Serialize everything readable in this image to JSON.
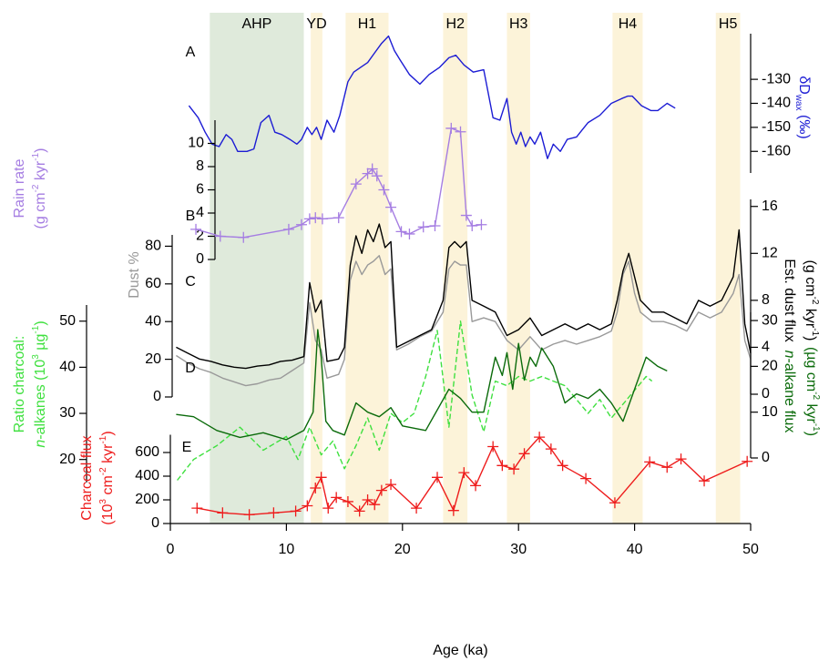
{
  "chart_data": [
    {
      "type": "line",
      "panel_label": "A",
      "y2label": [
        [
          {
            "text": "δD"
          },
          {
            "text": "wax",
            "sub": true
          },
          {
            "text": " (‰)"
          }
        ]
      ],
      "y2lim": [
        -169,
        -111
      ],
      "y2ticks": [
        -160,
        -150,
        -140,
        -130
      ],
      "series": [
        {
          "color": "#1c1cd4",
          "axis": "y2",
          "x": [
            1.6,
            2.4,
            3.0,
            3.6,
            4.2,
            4.8,
            5.3,
            5.8,
            6.6,
            7.2,
            7.8,
            8.5,
            9.0,
            9.6,
            10.3,
            10.9,
            11.3,
            11.8,
            12.2,
            12.6,
            13.0,
            13.5,
            14.1,
            14.6,
            15.3,
            15.8,
            16.4,
            17.0,
            17.6,
            18.2,
            18.8,
            19.3,
            19.8,
            20.6,
            21.5,
            22.3,
            23.2,
            24.0,
            24.6,
            25.3,
            26.1,
            27.0,
            27.8,
            28.4,
            29.0,
            29.4,
            29.8,
            30.2,
            30.6,
            31.0,
            31.4,
            31.9,
            32.5,
            33.0,
            33.6,
            34.2,
            35.0,
            36.0,
            37.0,
            38.0,
            38.9,
            39.4,
            39.8,
            40.6,
            41.4,
            42.0,
            42.8,
            43.5
          ],
          "values": [
            -141,
            -146,
            -152,
            -157,
            -158,
            -153,
            -155,
            -160,
            -160,
            -159,
            -148,
            -145,
            -152,
            -153,
            -155,
            -157,
            -155,
            -150,
            -153,
            -150,
            -155,
            -147,
            -152,
            -145,
            -131,
            -127,
            -125,
            -123,
            -119,
            -115,
            -112,
            -118,
            -122,
            -128,
            -132,
            -128,
            -125,
            -121,
            -120,
            -124,
            -127,
            -126,
            -146,
            -147,
            -138,
            -152,
            -157,
            -152,
            -158,
            -154,
            -157,
            -152,
            -163,
            -157,
            -160,
            -155,
            -154,
            -148,
            -145,
            -140,
            -138,
            -137,
            -137,
            -141,
            -143,
            -143,
            -140,
            -142
          ]
        }
      ]
    },
    {
      "type": "line",
      "panel_label": "B",
      "ylabel": [
        [
          {
            "text": "Rain rate"
          }
        ],
        [
          {
            "text": "(g cm"
          },
          {
            "text": "-2",
            "sup": true
          },
          {
            "text": " kyr"
          },
          {
            "text": "-1",
            "sup": true
          },
          {
            "text": ")"
          }
        ]
      ],
      "ylim": [
        0,
        12
      ],
      "yticks": [
        0,
        2,
        4,
        6,
        8,
        10
      ],
      "series": [
        {
          "color": "#a57de2",
          "marker": "+",
          "x": [
            2.2,
            4.3,
            6.3,
            10.2,
            11.3,
            12.0,
            12.5,
            13.1,
            14.5,
            16.0,
            17.0,
            17.4,
            17.8,
            18.4,
            19.0,
            19.9,
            20.6,
            21.8,
            22.8,
            24.2,
            25.0,
            25.5,
            26.0,
            26.8
          ],
          "values": [
            2.6,
            2.0,
            1.9,
            2.6,
            3.0,
            3.5,
            3.6,
            3.5,
            3.6,
            6.5,
            7.4,
            7.8,
            7.2,
            6.0,
            4.5,
            2.4,
            2.2,
            2.8,
            2.9,
            11.3,
            11.0,
            3.8,
            2.9,
            3.0
          ]
        }
      ]
    },
    {
      "type": "line",
      "panel_label": "C",
      "ylabel": [
        [
          {
            "text": "Dust %"
          }
        ]
      ],
      "ylim": [
        0,
        86
      ],
      "yticks": [
        0,
        20,
        40,
        60,
        80
      ],
      "y2label": [
        [
          {
            "text": "Est. dust flux"
          }
        ],
        [
          {
            "text": "(g cm"
          },
          {
            "text": "-2",
            "sup": true
          },
          {
            "text": " kyr"
          },
          {
            "text": "-1",
            "sup": true
          },
          {
            "text": ")"
          }
        ]
      ],
      "y2lim": [
        0,
        16.6
      ],
      "y2ticks": [
        0,
        4,
        8,
        12,
        16
      ],
      "series": [
        {
          "color": "#999999",
          "x": [
            0.5,
            1.5,
            2.5,
            3.5,
            4.5,
            5.5,
            6.5,
            7.5,
            8.5,
            9.5,
            10.5,
            11.5,
            12.0,
            12.5,
            13.0,
            13.5,
            14.5,
            15.0,
            15.5,
            16.0,
            16.5,
            17.0,
            17.5,
            18.0,
            18.5,
            19.0,
            19.5,
            20.5,
            21.5,
            22.5,
            23.5,
            24.0,
            24.5,
            25.0,
            25.5,
            26.0,
            27.0,
            28.0,
            29.0,
            30.0,
            31.0,
            32.0,
            33.0,
            34.0,
            35.0,
            36.0,
            37.0,
            38.0,
            38.5,
            39.0,
            39.5,
            40.0,
            40.5,
            41.5,
            42.5,
            43.5,
            44.5,
            45.5,
            46.5,
            47.5,
            48.5,
            49.0,
            49.5,
            50.0
          ],
          "values": [
            22,
            18,
            15,
            13,
            10,
            8,
            6,
            7,
            9,
            10,
            14,
            18,
            50,
            30,
            25,
            10,
            12,
            20,
            62,
            72,
            65,
            70,
            72,
            75,
            65,
            68,
            25,
            28,
            32,
            35,
            45,
            68,
            72,
            70,
            70,
            40,
            42,
            40,
            30,
            25,
            32,
            25,
            28,
            30,
            28,
            30,
            32,
            35,
            45,
            65,
            72,
            55,
            45,
            40,
            40,
            38,
            35,
            45,
            42,
            45,
            55,
            65,
            30,
            20
          ]
        },
        {
          "color": "#000000",
          "axis": "y2",
          "x": [
            0.5,
            1.5,
            2.5,
            3.5,
            4.5,
            5.5,
            6.5,
            7.5,
            8.5,
            9.5,
            10.5,
            11.5,
            12.0,
            12.5,
            13.0,
            13.5,
            14.5,
            15.0,
            15.5,
            16.0,
            16.5,
            17.0,
            17.5,
            18.0,
            18.5,
            19.0,
            19.5,
            20.5,
            21.5,
            22.5,
            23.5,
            24.0,
            24.5,
            25.0,
            25.5,
            26.0,
            27.0,
            28.0,
            29.0,
            30.0,
            31.0,
            32.0,
            33.0,
            34.0,
            35.0,
            36.0,
            37.0,
            38.0,
            38.5,
            39.0,
            39.5,
            40.0,
            40.5,
            41.5,
            42.5,
            43.5,
            44.5,
            45.5,
            46.5,
            47.5,
            48.5,
            49.0,
            49.5,
            50.0
          ],
          "values": [
            4.0,
            3.5,
            3.0,
            2.8,
            2.5,
            2.3,
            2.2,
            2.4,
            2.5,
            2.8,
            2.9,
            3.2,
            9.5,
            7.0,
            8.0,
            2.8,
            3.0,
            4.0,
            11.0,
            13.5,
            12.0,
            14.0,
            13.0,
            14.5,
            12.5,
            13.0,
            4.0,
            4.5,
            5.0,
            5.5,
            8.0,
            12.5,
            13.0,
            12.5,
            13.0,
            8.0,
            7.5,
            7.0,
            5.0,
            5.5,
            6.5,
            5.0,
            5.5,
            6.0,
            5.5,
            6.0,
            5.5,
            6.0,
            8.0,
            10.5,
            12.0,
            10.0,
            8.0,
            7.0,
            7.0,
            6.5,
            6.0,
            8.0,
            7.5,
            8.0,
            10.0,
            14.0,
            6.0,
            3.5
          ]
        }
      ]
    },
    {
      "type": "line",
      "panel_label": "D",
      "ylabel": [
        [
          {
            "text": "Ratio charcoal:"
          }
        ],
        [
          {
            "text": "n",
            "italic": true
          },
          {
            "text": "-alkanes (10"
          },
          {
            "text": "3",
            "sup": true
          },
          {
            "text": " µg"
          },
          {
            "text": "-1",
            "sup": true
          },
          {
            "text": ")"
          }
        ]
      ],
      "ylim": [
        15,
        53.5
      ],
      "yticks": [
        20,
        30,
        40,
        50
      ],
      "y2label": [
        [
          {
            "text": "n",
            "italic": true
          },
          {
            "text": "-alkane flux"
          }
        ],
        [
          {
            "text": "(µg cm"
          },
          {
            "text": "-2",
            "sup": true
          },
          {
            "text": " kyr"
          },
          {
            "text": "-1",
            "sup": true
          },
          {
            "text": ")"
          }
        ]
      ],
      "y2lim": [
        0,
        31.8
      ],
      "y2ticks": [
        0,
        10,
        20,
        30
      ],
      "series": [
        {
          "color": "#3fe03f",
          "dash": true,
          "x": [
            0.6,
            2,
            4,
            6,
            8,
            10,
            11,
            12,
            13,
            14,
            15,
            16,
            17,
            18,
            19,
            20,
            21,
            22,
            23,
            24,
            25,
            26,
            27,
            28,
            29,
            30,
            31,
            32,
            33,
            34,
            35,
            36,
            37,
            38,
            39,
            40,
            41,
            41.5
          ],
          "values": [
            15.5,
            20,
            23,
            27,
            22,
            25,
            20,
            27,
            21,
            24,
            18,
            23,
            29,
            22,
            30,
            28,
            30,
            38,
            48,
            27,
            50,
            34,
            26,
            37,
            36,
            38,
            37,
            38,
            37,
            36,
            33,
            30,
            33,
            29,
            32,
            35,
            38,
            37
          ]
        },
        {
          "color": "#0b6b0b",
          "axis": "y2",
          "x": [
            0.5,
            2,
            4,
            6,
            8,
            10,
            11.5,
            12.3,
            12.7,
            13.0,
            13.4,
            14,
            15,
            16,
            17,
            18,
            19,
            20,
            22,
            24,
            25,
            26,
            27,
            28,
            28.6,
            29,
            29.5,
            30,
            30.5,
            31,
            31.5,
            32,
            33,
            34,
            35,
            36,
            37,
            38,
            39,
            40,
            41,
            42,
            42.8
          ],
          "values": [
            9.5,
            9,
            6,
            4.5,
            5.5,
            4,
            6,
            10,
            28,
            22,
            8,
            6,
            5,
            12,
            10,
            9,
            11,
            7,
            6,
            15,
            13,
            10,
            10,
            22,
            18,
            23,
            15,
            25,
            17,
            22,
            20,
            24,
            20,
            12,
            14,
            13,
            15,
            12,
            8,
            15,
            22,
            20,
            19
          ]
        }
      ]
    },
    {
      "type": "line",
      "panel_label": "E",
      "ylabel": [
        [
          {
            "text": "Charcoal flux"
          }
        ],
        [
          {
            "text": "(10"
          },
          {
            "text": "3",
            "sup": true
          },
          {
            "text": " cm"
          },
          {
            "text": "-2",
            "sup": true
          },
          {
            "text": " kyr"
          },
          {
            "text": "-1",
            "sup": true
          },
          {
            "text": ")"
          }
        ]
      ],
      "ylim": [
        0,
        750
      ],
      "yticks": [
        0,
        200,
        400,
        600
      ],
      "xlabel": "Age (ka)",
      "xlim": [
        0,
        50
      ],
      "xticks": [
        0,
        10,
        20,
        30,
        40,
        50
      ],
      "bands": [
        {
          "label": "AHP",
          "range": [
            3.4,
            11.5
          ],
          "color": "#dfeadb"
        },
        {
          "label": "YD",
          "range": [
            12.1,
            13.1
          ],
          "color": "#fcf3d9"
        },
        {
          "label": "H1",
          "range": [
            15.1,
            18.8
          ],
          "color": "#fcf3d9"
        },
        {
          "label": "H2",
          "range": [
            23.5,
            25.6
          ],
          "color": "#fcf3d9"
        },
        {
          "label": "H3",
          "range": [
            29.0,
            31.0
          ],
          "color": "#fcf3d9"
        },
        {
          "label": "H4",
          "range": [
            38.1,
            40.7
          ],
          "color": "#fcf3d9"
        },
        {
          "label": "H5",
          "range": [
            47.0,
            49.1
          ],
          "color": "#fcf3d9"
        }
      ],
      "series": [
        {
          "color": "#ee1c1c",
          "marker": "+",
          "x": [
            2.3,
            4.5,
            6.8,
            8.9,
            10.8,
            11.8,
            12.5,
            13.0,
            13.6,
            14.3,
            15.3,
            16.3,
            17.0,
            17.6,
            18.2,
            19.0,
            21.2,
            23.0,
            24.4,
            25.3,
            26.3,
            27.8,
            28.6,
            29.6,
            30.5,
            31.8,
            32.8,
            33.8,
            35.8,
            38.3,
            41.3,
            42.8,
            44.0,
            46.0,
            49.7
          ],
          "values": [
            130,
            90,
            75,
            90,
            105,
            150,
            300,
            390,
            130,
            220,
            185,
            105,
            200,
            160,
            280,
            330,
            130,
            390,
            110,
            430,
            320,
            650,
            490,
            460,
            590,
            730,
            630,
            490,
            380,
            175,
            520,
            475,
            545,
            360,
            525
          ]
        }
      ]
    }
  ]
}
